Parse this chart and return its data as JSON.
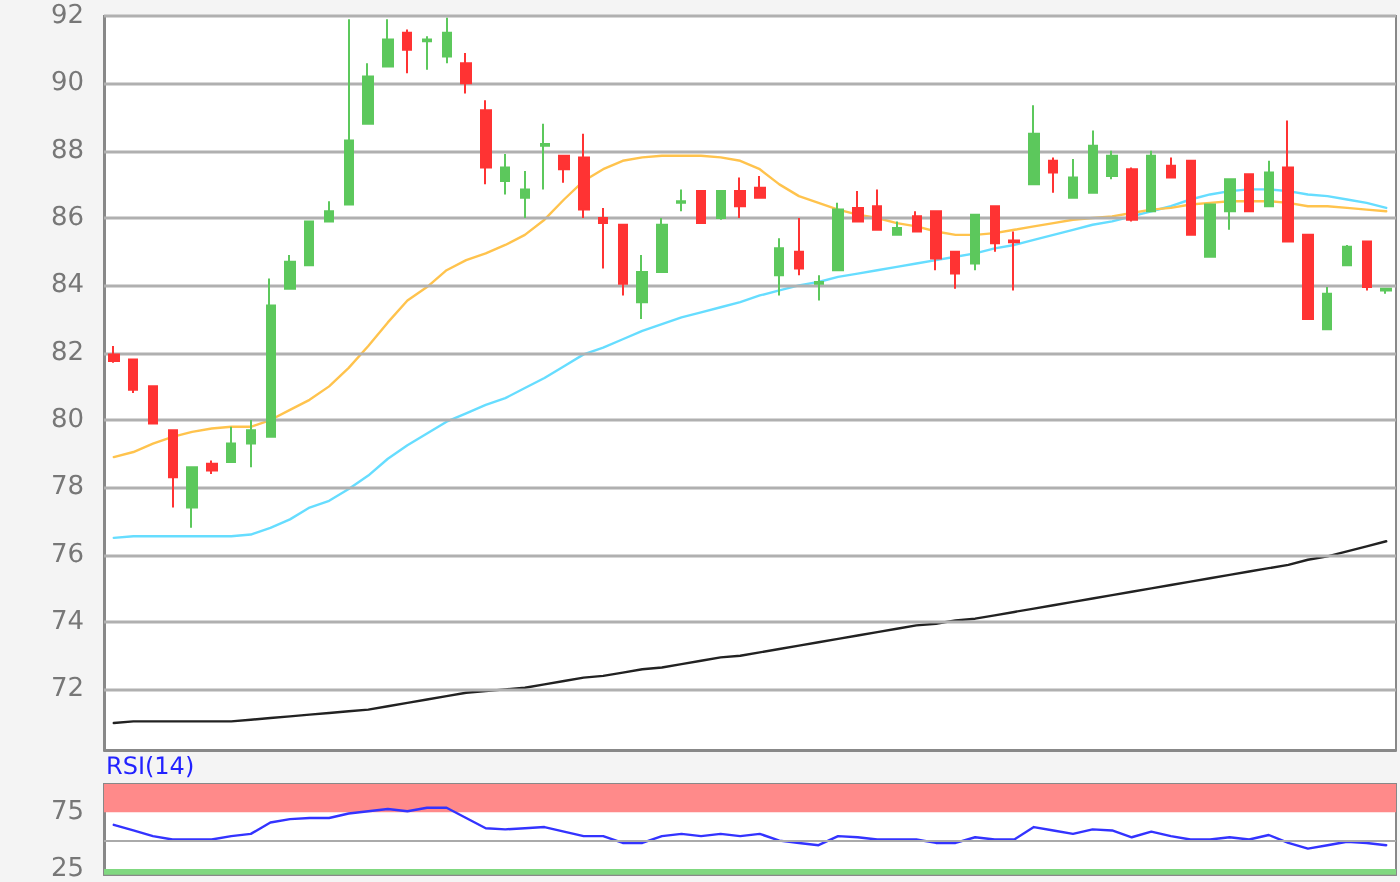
{
  "chart_data": [
    {
      "type": "candlestick",
      "categories": [
        null,
        null,
        null,
        null,
        null,
        null,
        null,
        null,
        null,
        null,
        null,
        null,
        null,
        null,
        null,
        null,
        null,
        null,
        null,
        null,
        null,
        null,
        null,
        null,
        null,
        null,
        null,
        null,
        null,
        null,
        null,
        null,
        null,
        null,
        null,
        null,
        null,
        null,
        null,
        null,
        null,
        null,
        null,
        null,
        null,
        null,
        null,
        null,
        null,
        null,
        null,
        null,
        null,
        null,
        null,
        null,
        null,
        null,
        null,
        null,
        null,
        null,
        null,
        null,
        null,
        null
      ],
      "ohlc": [
        [
          81.95,
          82.2,
          81.7,
          81.75
        ],
        [
          81.8,
          81.8,
          80.8,
          80.9
        ],
        [
          81.0,
          81.0,
          79.9,
          79.9
        ],
        [
          79.7,
          79.7,
          77.4,
          78.3
        ],
        [
          77.4,
          78.6,
          76.8,
          78.6
        ],
        [
          78.7,
          78.8,
          78.4,
          78.5
        ],
        [
          78.75,
          79.8,
          78.75,
          79.3
        ],
        [
          79.3,
          80.0,
          78.6,
          79.7
        ],
        [
          79.5,
          84.2,
          79.5,
          83.4
        ],
        [
          83.9,
          84.9,
          83.9,
          84.7
        ],
        [
          84.6,
          85.9,
          84.6,
          85.9
        ],
        [
          85.9,
          86.5,
          85.9,
          86.2
        ],
        [
          86.4,
          91.9,
          86.4,
          88.3
        ],
        [
          88.8,
          90.6,
          88.8,
          90.2
        ],
        [
          90.5,
          91.9,
          90.5,
          91.3
        ],
        [
          91.5,
          91.6,
          90.3,
          91.0
        ],
        [
          91.25,
          91.4,
          90.4,
          91.3
        ],
        [
          90.8,
          91.95,
          90.6,
          91.5
        ],
        [
          90.6,
          90.9,
          89.7,
          90.0
        ],
        [
          89.2,
          89.5,
          87.0,
          87.5
        ],
        [
          87.1,
          87.9,
          86.7,
          87.5
        ],
        [
          86.6,
          87.4,
          86.0,
          86.85
        ],
        [
          88.15,
          88.8,
          86.85,
          88.2
        ],
        [
          87.85,
          87.85,
          87.05,
          87.45
        ],
        [
          87.8,
          88.5,
          86.0,
          86.25
        ],
        [
          86.0,
          86.3,
          84.5,
          85.85
        ],
        [
          85.8,
          85.8,
          83.7,
          84.05
        ],
        [
          83.5,
          84.9,
          83.0,
          84.4
        ],
        [
          84.4,
          86.0,
          84.4,
          85.8
        ],
        [
          86.45,
          86.85,
          86.2,
          86.5
        ],
        [
          86.8,
          86.8,
          85.85,
          85.85
        ],
        [
          86.0,
          86.8,
          85.95,
          86.8
        ],
        [
          86.8,
          87.2,
          86.0,
          86.35
        ],
        [
          86.9,
          87.25,
          86.6,
          86.6
        ],
        [
          84.3,
          85.4,
          83.7,
          85.1
        ],
        [
          85.0,
          86.0,
          84.3,
          84.5
        ],
        [
          84.05,
          84.3,
          83.55,
          84.1
        ],
        [
          84.45,
          86.45,
          84.45,
          86.25
        ],
        [
          86.3,
          86.8,
          85.9,
          85.9
        ],
        [
          86.35,
          86.85,
          85.65,
          85.65
        ],
        [
          85.5,
          85.9,
          85.5,
          85.7
        ],
        [
          86.05,
          86.2,
          85.6,
          85.6
        ],
        [
          86.2,
          86.2,
          84.45,
          84.8
        ],
        [
          85.0,
          85.0,
          83.9,
          84.35
        ],
        [
          84.65,
          86.1,
          84.45,
          86.1
        ],
        [
          86.35,
          86.35,
          85.0,
          85.25
        ],
        [
          85.33,
          85.6,
          83.85,
          85.28
        ],
        [
          87.0,
          89.35,
          87.0,
          88.5
        ],
        [
          87.7,
          87.8,
          86.75,
          87.35
        ],
        [
          86.6,
          87.75,
          86.6,
          87.2
        ],
        [
          86.75,
          88.6,
          86.75,
          88.15
        ],
        [
          87.25,
          88.0,
          87.15,
          87.85
        ],
        [
          87.45,
          87.5,
          85.9,
          85.95
        ],
        [
          86.2,
          88.0,
          86.2,
          87.85
        ],
        [
          87.55,
          87.8,
          87.2,
          87.2
        ],
        [
          87.7,
          87.7,
          85.5,
          85.5
        ],
        [
          84.85,
          86.4,
          84.85,
          86.4
        ],
        [
          86.2,
          87.15,
          85.65,
          87.15
        ],
        [
          87.3,
          87.3,
          86.2,
          86.2
        ],
        [
          86.35,
          87.7,
          86.35,
          87.35
        ],
        [
          87.5,
          88.9,
          85.3,
          85.3
        ],
        [
          85.5,
          85.5,
          83.0,
          83.0
        ],
        [
          82.7,
          83.95,
          82.7,
          83.75
        ],
        [
          84.6,
          85.2,
          84.6,
          85.15
        ],
        [
          85.3,
          85.3,
          83.85,
          83.95
        ],
        [
          83.85,
          83.9,
          83.75,
          83.9
        ]
      ],
      "colors": [
        "#ff3333",
        "#ff3333",
        "#ff3333",
        "#ff3333",
        "#5cc85c",
        "#ff3333",
        "#5cc85c",
        "#5cc85c",
        "#5cc85c",
        "#5cc85c",
        "#5cc85c",
        "#5cc85c",
        "#5cc85c",
        "#5cc85c",
        "#5cc85c",
        "#ff3333",
        "#5cc85c",
        "#5cc85c",
        "#ff3333",
        "#ff3333",
        "#5cc85c",
        "#5cc85c",
        "#5cc85c",
        "#ff3333",
        "#ff3333",
        "#ff3333",
        "#ff3333",
        "#5cc85c",
        "#5cc85c",
        "#5cc85c",
        "#ff3333",
        "#5cc85c",
        "#ff3333",
        "#ff3333",
        "#5cc85c",
        "#ff3333",
        "#5cc85c",
        "#5cc85c",
        "#ff3333",
        "#ff3333",
        "#5cc85c",
        "#ff3333",
        "#ff3333",
        "#ff3333",
        "#5cc85c",
        "#ff3333",
        "#ff3333",
        "#5cc85c",
        "#ff3333",
        "#5cc85c",
        "#5cc85c",
        "#5cc85c",
        "#ff3333",
        "#5cc85c",
        "#ff3333",
        "#ff3333",
        "#5cc85c",
        "#5cc85c",
        "#ff3333",
        "#5cc85c",
        "#ff3333",
        "#ff3333",
        "#5cc85c",
        "#5cc85c",
        "#ff3333",
        "#5cc85c"
      ],
      "series": [
        {
          "type": "line",
          "color": "#ffc34d",
          "values": [
            78.9,
            79.05,
            79.3,
            79.5,
            79.65,
            79.75,
            79.8,
            79.8,
            80.0,
            80.3,
            80.6,
            81.0,
            81.55,
            82.2,
            82.9,
            83.55,
            83.95,
            84.45,
            84.75,
            84.95,
            85.2,
            85.5,
            85.95,
            86.55,
            87.1,
            87.45,
            87.7,
            87.8,
            87.85,
            87.85,
            87.85,
            87.8,
            87.7,
            87.45,
            87.0,
            86.65,
            86.45,
            86.25,
            86.1,
            86.0,
            85.85,
            85.75,
            85.6,
            85.5,
            85.5,
            85.55,
            85.65,
            85.75,
            85.85,
            85.95,
            86.0,
            86.05,
            86.15,
            86.25,
            86.3,
            86.4,
            86.45,
            86.5,
            86.5,
            86.5,
            86.45,
            86.35,
            86.35,
            86.3,
            86.25,
            86.2
          ]
        },
        {
          "type": "line",
          "color": "#66ddff",
          "values": [
            76.5,
            76.55,
            76.55,
            76.55,
            76.55,
            76.55,
            76.55,
            76.6,
            76.8,
            77.05,
            77.4,
            77.6,
            77.95,
            78.35,
            78.85,
            79.25,
            79.6,
            79.95,
            80.2,
            80.45,
            80.65,
            80.95,
            81.25,
            81.6,
            81.95,
            82.15,
            82.4,
            82.65,
            82.85,
            83.05,
            83.2,
            83.35,
            83.5,
            83.7,
            83.85,
            84.0,
            84.1,
            84.25,
            84.35,
            84.45,
            84.55,
            84.65,
            84.75,
            84.85,
            84.95,
            85.1,
            85.2,
            85.35,
            85.5,
            85.65,
            85.8,
            85.9,
            86.05,
            86.2,
            86.35,
            86.55,
            86.7,
            86.8,
            86.85,
            86.85,
            86.8,
            86.7,
            86.65,
            86.55,
            86.45,
            86.3
          ]
        },
        {
          "type": "line",
          "color": "#222222",
          "values": [
            71.0,
            71.05,
            71.05,
            71.05,
            71.05,
            71.05,
            71.05,
            71.1,
            71.15,
            71.2,
            71.25,
            71.3,
            71.35,
            71.4,
            71.5,
            71.6,
            71.7,
            71.8,
            71.9,
            71.95,
            72.0,
            72.05,
            72.15,
            72.25,
            72.35,
            72.4,
            72.5,
            72.6,
            72.65,
            72.75,
            72.85,
            72.95,
            73.0,
            73.1,
            73.2,
            73.3,
            73.4,
            73.5,
            73.6,
            73.7,
            73.8,
            73.9,
            73.95,
            74.05,
            74.1,
            74.2,
            74.3,
            74.4,
            74.5,
            74.6,
            74.7,
            74.8,
            74.9,
            75.0,
            75.1,
            75.2,
            75.3,
            75.4,
            75.5,
            75.6,
            75.7,
            75.85,
            75.95,
            76.1,
            76.25,
            76.4
          ]
        }
      ],
      "ylim": [
        70.2,
        92
      ],
      "yticks": [
        72,
        74,
        76,
        78,
        80,
        82,
        84,
        86,
        88,
        90,
        92
      ],
      "grid": "y",
      "tick_labels": "y",
      "marker": "none"
    },
    {
      "type": "line",
      "title": "RSI(14)",
      "categories": [
        null,
        null,
        null,
        null,
        null,
        null,
        null,
        null,
        null,
        null,
        null,
        null,
        null,
        null,
        null,
        null,
        null,
        null,
        null,
        null,
        null,
        null,
        null,
        null,
        null,
        null,
        null,
        null,
        null,
        null,
        null,
        null,
        null,
        null,
        null,
        null,
        null,
        null,
        null,
        null,
        null,
        null,
        null,
        null,
        null,
        null,
        null,
        null,
        null,
        null,
        null,
        null,
        null,
        null,
        null,
        null,
        null,
        null,
        null,
        null,
        null,
        null,
        null,
        null,
        null,
        null
      ],
      "series": [
        {
          "color": "#3333ff",
          "values": [
            64,
            59,
            54,
            51,
            51,
            51,
            54,
            56,
            66,
            69,
            70,
            70,
            74,
            76,
            78,
            76,
            79,
            79,
            70,
            61,
            60,
            61,
            62,
            58,
            54,
            54,
            48,
            48,
            54,
            56,
            54,
            56,
            54,
            56,
            50,
            48,
            46,
            54,
            53,
            51,
            51,
            51,
            48,
            48,
            53,
            51,
            51,
            62,
            59,
            56,
            60,
            59,
            53,
            58,
            54,
            51,
            51,
            53,
            51,
            55,
            48,
            43,
            46,
            49,
            48,
            46
          ]
        }
      ],
      "ylim": [
        20,
        100
      ],
      "yticks": [
        25,
        75
      ],
      "grid": false,
      "tick_labels": "y",
      "marker": "none",
      "bands": [
        {
          "axis": "y",
          "from": 75,
          "to": 100,
          "color": "#ff8a8a"
        },
        {
          "axis": "y",
          "from": 20,
          "to": 25,
          "color": "#80d880"
        }
      ],
      "ref_lines": [
        {
          "axis": "y",
          "value": 50,
          "color": "#aaaaaa"
        }
      ]
    }
  ]
}
